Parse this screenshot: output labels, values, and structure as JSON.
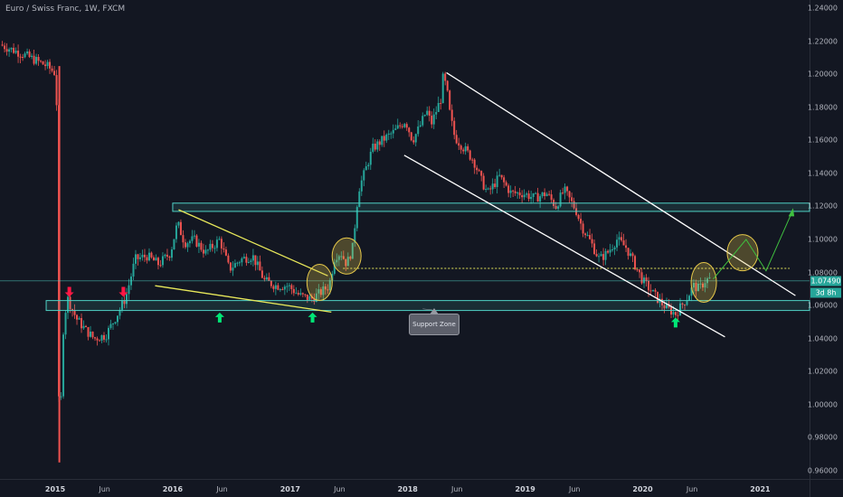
{
  "header": {
    "title": "Euro / Swiss Franc, 1W, FXCM"
  },
  "colors": {
    "background": "#131722",
    "up": "#26a69a",
    "down": "#ef5350",
    "zone": "#4fd1c5",
    "wedge": "#e8e85a",
    "ellipse": "#e6c84a",
    "arrow_up": "#00e676",
    "arrow_down": "#ff1744",
    "dotted": "#e8e85a",
    "channel": "#ffffff"
  },
  "chart_data": {
    "type": "candlestick",
    "symbol": "Euro / Swiss Franc",
    "interval": "1W",
    "source": "FXCM",
    "ylim": [
      0.955,
      1.245
    ],
    "y_ticks": [
      "1.24000",
      "1.22000",
      "1.20000",
      "1.18000",
      "1.16000",
      "1.14000",
      "1.12000",
      "1.10000",
      "1.08000",
      "1.06000",
      "1.04000",
      "1.02000",
      "1.00000",
      "0.98000",
      "0.96000"
    ],
    "x_ticks": [
      {
        "label": "2015",
        "year": true,
        "t": 2015.0
      },
      {
        "label": "Jun",
        "year": false,
        "t": 2015.42
      },
      {
        "label": "2016",
        "year": true,
        "t": 2016.0
      },
      {
        "label": "Jun",
        "year": false,
        "t": 2016.42
      },
      {
        "label": "2017",
        "year": true,
        "t": 2017.0
      },
      {
        "label": "Jun",
        "year": false,
        "t": 2017.42
      },
      {
        "label": "2018",
        "year": true,
        "t": 2018.0
      },
      {
        "label": "Jun",
        "year": false,
        "t": 2018.42
      },
      {
        "label": "2019",
        "year": true,
        "t": 2019.0
      },
      {
        "label": "Jun",
        "year": false,
        "t": 2019.42
      },
      {
        "label": "2020",
        "year": true,
        "t": 2020.0
      },
      {
        "label": "Jun",
        "year": false,
        "t": 2020.42
      },
      {
        "label": "2021",
        "year": true,
        "t": 2021.0
      }
    ],
    "xlim": [
      2014.53,
      2021.42
    ],
    "path": [
      [
        2014.55,
        1.218
      ],
      [
        2014.75,
        1.212
      ],
      [
        2014.95,
        1.205
      ],
      [
        2015.03,
        1.2
      ],
      [
        2015.04,
        0.975
      ],
      [
        2015.05,
        0.99
      ],
      [
        2015.08,
        1.04
      ],
      [
        2015.12,
        1.065
      ],
      [
        2015.2,
        1.052
      ],
      [
        2015.28,
        1.045
      ],
      [
        2015.35,
        1.04
      ],
      [
        2015.45,
        1.042
      ],
      [
        2015.55,
        1.055
      ],
      [
        2015.62,
        1.065
      ],
      [
        2015.7,
        1.088
      ],
      [
        2015.8,
        1.09
      ],
      [
        2015.9,
        1.085
      ],
      [
        2016.0,
        1.092
      ],
      [
        2016.06,
        1.11
      ],
      [
        2016.12,
        1.098
      ],
      [
        2016.2,
        1.1
      ],
      [
        2016.3,
        1.092
      ],
      [
        2016.42,
        1.1
      ],
      [
        2016.5,
        1.082
      ],
      [
        2016.6,
        1.088
      ],
      [
        2016.7,
        1.09
      ],
      [
        2016.8,
        1.075
      ],
      [
        2016.9,
        1.072
      ],
      [
        2017.0,
        1.072
      ],
      [
        2017.1,
        1.066
      ],
      [
        2017.2,
        1.064
      ],
      [
        2017.28,
        1.068
      ],
      [
        2017.35,
        1.072
      ],
      [
        2017.4,
        1.09
      ],
      [
        2017.45,
        1.092
      ],
      [
        2017.5,
        1.085
      ],
      [
        2017.55,
        1.095
      ],
      [
        2017.6,
        1.13
      ],
      [
        2017.65,
        1.14
      ],
      [
        2017.72,
        1.155
      ],
      [
        2017.8,
        1.16
      ],
      [
        2017.9,
        1.165
      ],
      [
        2018.0,
        1.172
      ],
      [
        2018.06,
        1.16
      ],
      [
        2018.12,
        1.168
      ],
      [
        2018.18,
        1.178
      ],
      [
        2018.22,
        1.17
      ],
      [
        2018.3,
        1.185
      ],
      [
        2018.32,
        1.198
      ],
      [
        2018.35,
        1.192
      ],
      [
        2018.38,
        1.175
      ],
      [
        2018.42,
        1.162
      ],
      [
        2018.5,
        1.155
      ],
      [
        2018.58,
        1.148
      ],
      [
        2018.65,
        1.135
      ],
      [
        2018.7,
        1.128
      ],
      [
        2018.8,
        1.138
      ],
      [
        2018.9,
        1.128
      ],
      [
        2019.0,
        1.128
      ],
      [
        2019.1,
        1.125
      ],
      [
        2019.2,
        1.128
      ],
      [
        2019.28,
        1.12
      ],
      [
        2019.35,
        1.13
      ],
      [
        2019.45,
        1.118
      ],
      [
        2019.5,
        1.108
      ],
      [
        2019.58,
        1.098
      ],
      [
        2019.65,
        1.088
      ],
      [
        2019.72,
        1.092
      ],
      [
        2019.8,
        1.1
      ],
      [
        2019.88,
        1.095
      ],
      [
        2019.95,
        1.085
      ],
      [
        2020.02,
        1.075
      ],
      [
        2020.1,
        1.068
      ],
      [
        2020.17,
        1.062
      ],
      [
        2020.23,
        1.058
      ],
      [
        2020.3,
        1.055
      ],
      [
        2020.35,
        1.06
      ],
      [
        2020.4,
        1.065
      ],
      [
        2020.45,
        1.072
      ],
      [
        2020.5,
        1.07
      ],
      [
        2020.55,
        1.075
      ],
      [
        2020.58,
        1.076
      ]
    ],
    "last_price": "1.07490",
    "countdown": "3d 8h",
    "annotations": {
      "zone_label": "Support Zone"
    }
  }
}
